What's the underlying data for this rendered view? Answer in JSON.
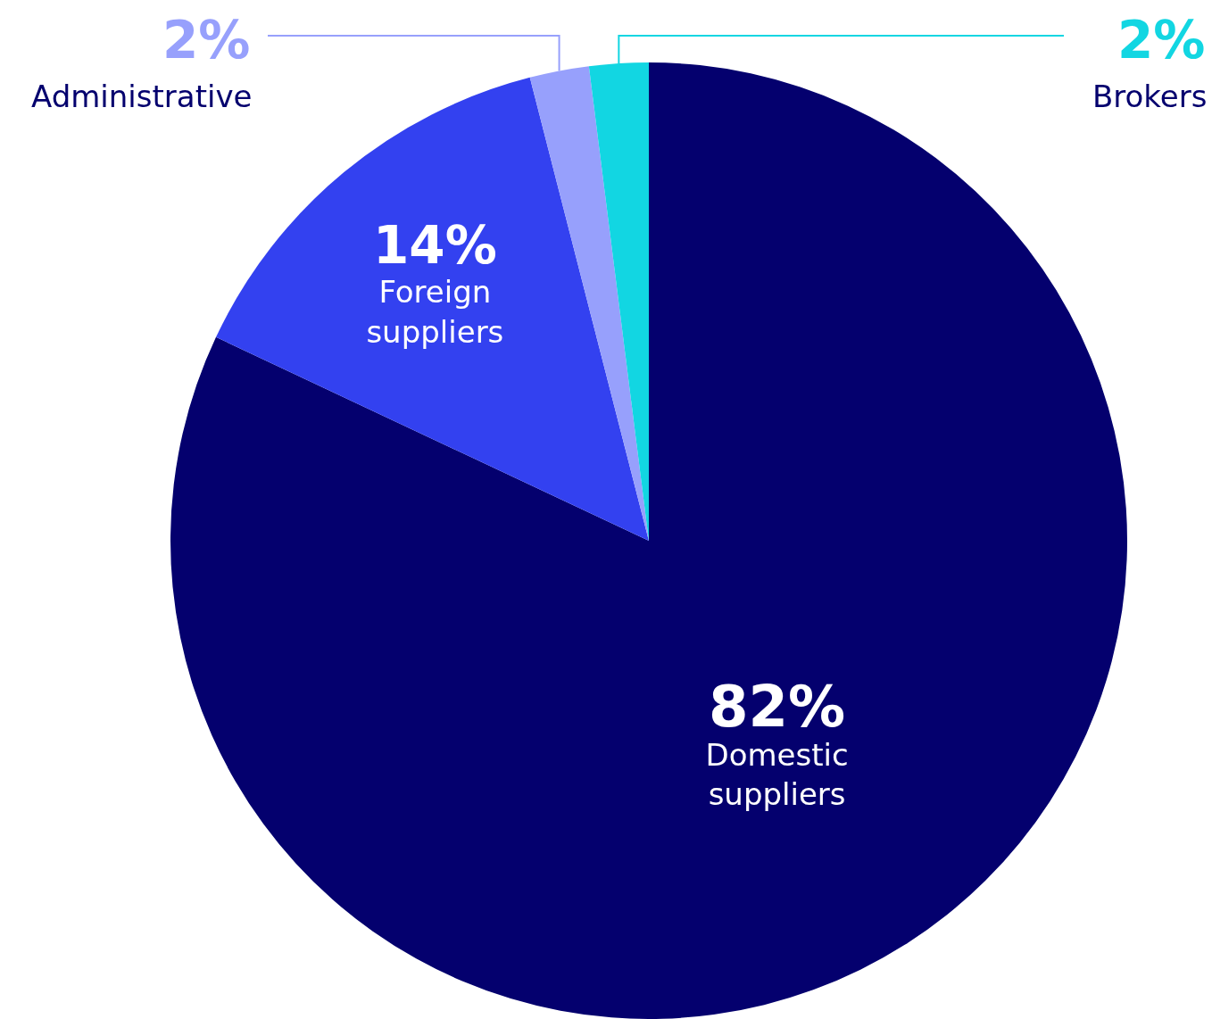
{
  "chart_data": {
    "type": "pie",
    "categories": [
      "Domestic suppliers",
      "Foreign suppliers",
      "Administrative",
      "Brokers"
    ],
    "values": [
      82,
      14,
      2,
      2
    ],
    "value_labels": [
      "82%",
      "14%",
      "2%",
      "2%"
    ],
    "colors": [
      "#04006e",
      "#3341f0",
      "#97a0fc",
      "#12d6e2"
    ],
    "legend": false
  }
}
